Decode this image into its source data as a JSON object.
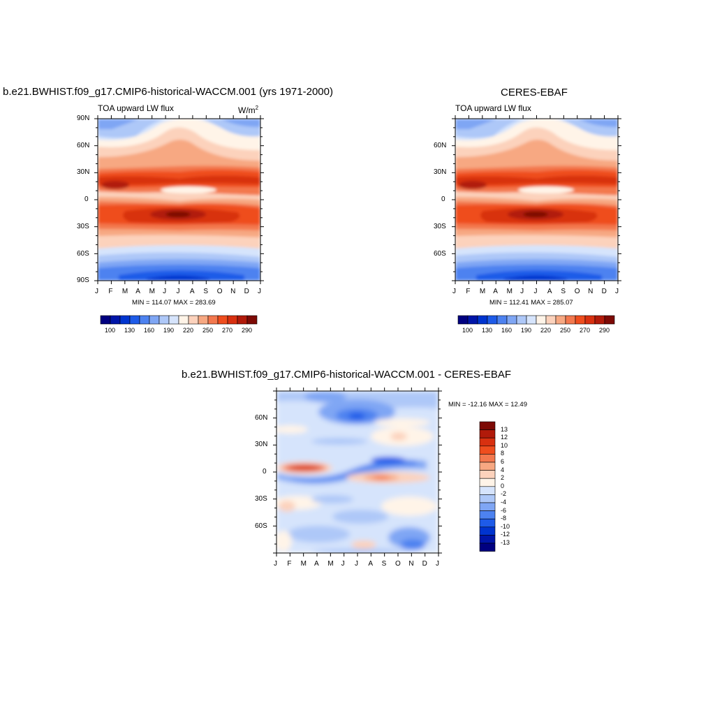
{
  "chart_data": [
    {
      "type": "heatmap",
      "title": "b.e21.BWHIST.f09_g17.CMIP6-historical-WACCM.001 (yrs 1971-2000)",
      "subtitle_left": "TOA upward LW flux",
      "units_base": "W/m",
      "units_exp": "2",
      "x_ticks": [
        "J",
        "F",
        "M",
        "A",
        "M",
        "J",
        "J",
        "A",
        "S",
        "O",
        "N",
        "D",
        "J"
      ],
      "y_ticks": [
        "90N",
        "60N",
        "30N",
        "0",
        "30S",
        "60S",
        "90S"
      ],
      "stats": "MIN = 114.07 MAX = 283.69",
      "colorbar_labels": [
        "100",
        "130",
        "160",
        "190",
        "220",
        "250",
        "270",
        "290"
      ]
    },
    {
      "type": "heatmap",
      "title": "CERES-EBAF",
      "subtitle_left": "TOA upward LW flux",
      "x_ticks": [
        "J",
        "F",
        "M",
        "A",
        "M",
        "J",
        "J",
        "A",
        "S",
        "O",
        "N",
        "D",
        "J"
      ],
      "y_ticks": [
        "60N",
        "30N",
        "0",
        "30S",
        "60S"
      ],
      "stats": "MIN = 112.41 MAX = 285.07",
      "colorbar_labels": [
        "100",
        "130",
        "160",
        "190",
        "220",
        "250",
        "270",
        "290"
      ]
    },
    {
      "type": "heatmap",
      "title": "b.e21.BWHIST.f09_g17.CMIP6-historical-WACCM.001 - CERES-EBAF",
      "x_ticks": [
        "J",
        "F",
        "M",
        "A",
        "M",
        "J",
        "J",
        "A",
        "S",
        "O",
        "N",
        "D",
        "J"
      ],
      "y_ticks": [
        "60N",
        "30N",
        "0",
        "30S",
        "60S"
      ],
      "stats": "MIN = -12.16 MAX =  12.49",
      "colorbar_labels": [
        "13",
        "12",
        "10",
        "8",
        "6",
        "4",
        "2",
        "0",
        "-2",
        "-4",
        "-6",
        "-8",
        "-10",
        "-12",
        "-13"
      ]
    }
  ],
  "colors": {
    "seq": [
      "#000080",
      "#0015a8",
      "#0034cf",
      "#1e5be8",
      "#4d82f0",
      "#7fa6f4",
      "#aec8f8",
      "#d6e4fc",
      "#fff4e8",
      "#fcd2bc",
      "#f7a882",
      "#f3784e",
      "#ef4d1e",
      "#d83010",
      "#b11a0a",
      "#7d0a05"
    ],
    "div": [
      "#7d0a05",
      "#b11a0a",
      "#d83010",
      "#ef4d1e",
      "#f3784e",
      "#f7a882",
      "#fcd2bc",
      "#fff4e8",
      "#d6e4fc",
      "#aec8f8",
      "#7fa6f4",
      "#4d82f0",
      "#1e5be8",
      "#0034cf",
      "#0015a8",
      "#000080"
    ]
  }
}
